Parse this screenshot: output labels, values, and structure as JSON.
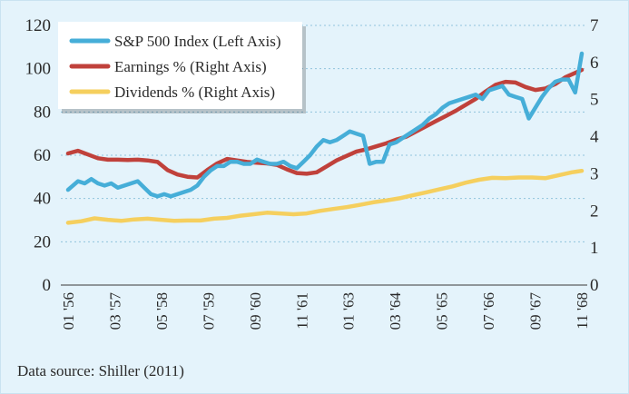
{
  "chart_data": {
    "type": "line",
    "title": "",
    "xlabel": "",
    "ylabel_left": "",
    "ylabel_right": "",
    "x_tick_labels": [
      "01 '56",
      "03 '57",
      "05 '58",
      "07 '59",
      "09 '60",
      "11 '61",
      "01 '63",
      "03 '64",
      "05 '65",
      "07 '66",
      "09 '67",
      "11 '68"
    ],
    "x_range": [
      0,
      155
    ],
    "left_axis": {
      "ylim": [
        0,
        120
      ],
      "ticks": [
        0,
        20,
        40,
        60,
        80,
        100,
        120
      ]
    },
    "right_axis": {
      "ylim": [
        0,
        7
      ],
      "ticks": [
        0,
        1,
        2,
        3,
        4,
        5,
        6,
        7
      ]
    },
    "grid": "dotted, aligned to left-axis ticks",
    "legend_position": "top-left",
    "series": [
      {
        "name": "S&P 500 Index (Left Axis)",
        "axis": "left",
        "color": "#46aed8",
        "x": [
          0,
          3,
          5,
          7,
          9,
          11,
          13,
          15,
          17,
          19,
          21,
          23,
          25,
          27,
          29,
          31,
          33,
          35,
          37,
          39,
          41,
          43,
          45,
          47,
          49,
          51,
          53,
          55,
          57,
          59,
          61,
          63,
          65,
          67,
          69,
          71,
          73,
          75,
          77,
          79,
          81,
          83,
          85,
          87,
          89,
          91,
          93,
          95,
          97,
          99,
          101,
          103,
          105,
          107,
          109,
          111,
          113,
          115,
          117,
          119,
          121,
          123,
          125,
          127,
          129,
          131,
          133,
          135,
          137,
          139,
          141,
          143,
          145,
          147,
          149,
          151,
          153,
          155
        ],
        "values": [
          44,
          48,
          47,
          49,
          47,
          46,
          47,
          45,
          46,
          47,
          48,
          45,
          42,
          41,
          42,
          41,
          42,
          43,
          44,
          46,
          50,
          53,
          55,
          55,
          57,
          57,
          56,
          56,
          58,
          57,
          56,
          56,
          57,
          55,
          54,
          57,
          60,
          64,
          67,
          66,
          67,
          69,
          71,
          70,
          69,
          56,
          57,
          57,
          65,
          66,
          68,
          70,
          72,
          74,
          77,
          79,
          82,
          84,
          85,
          86,
          87,
          88,
          86,
          90,
          91,
          92,
          88,
          87,
          86,
          77,
          82,
          87,
          91,
          94,
          95,
          95,
          89,
          107
        ]
      },
      {
        "name": "Earnings % (Right Axis)",
        "axis": "right",
        "color": "#c0413b",
        "x": [
          0,
          3,
          6,
          9,
          12,
          15,
          18,
          21,
          24,
          27,
          30,
          33,
          36,
          39,
          42,
          45,
          48,
          51,
          54,
          57,
          60,
          63,
          66,
          69,
          72,
          75,
          78,
          81,
          84,
          87,
          90,
          93,
          96,
          99,
          102,
          105,
          108,
          111,
          114,
          117,
          120,
          123,
          126,
          129,
          132,
          135,
          138,
          141,
          144,
          147,
          150,
          153,
          155
        ],
        "values": [
          3.55,
          3.62,
          3.52,
          3.42,
          3.38,
          3.38,
          3.37,
          3.38,
          3.36,
          3.32,
          3.1,
          2.98,
          2.92,
          2.9,
          3.1,
          3.28,
          3.4,
          3.36,
          3.32,
          3.3,
          3.28,
          3.24,
          3.12,
          3.02,
          3.0,
          3.04,
          3.2,
          3.36,
          3.48,
          3.6,
          3.66,
          3.74,
          3.82,
          3.92,
          4.0,
          4.14,
          4.28,
          4.42,
          4.56,
          4.7,
          4.86,
          5.02,
          5.22,
          5.4,
          5.48,
          5.46,
          5.34,
          5.26,
          5.3,
          5.42,
          5.6,
          5.72,
          5.8
        ]
      },
      {
        "name": "Dividends % (Right Axis)",
        "axis": "right",
        "color": "#f5cf5e",
        "x": [
          0,
          4,
          8,
          12,
          16,
          20,
          24,
          28,
          32,
          36,
          40,
          44,
          48,
          52,
          56,
          60,
          64,
          68,
          72,
          76,
          80,
          84,
          88,
          92,
          96,
          100,
          104,
          108,
          112,
          116,
          120,
          124,
          128,
          132,
          136,
          140,
          144,
          148,
          152,
          155
        ],
        "values": [
          1.68,
          1.72,
          1.8,
          1.76,
          1.73,
          1.77,
          1.79,
          1.76,
          1.73,
          1.74,
          1.74,
          1.79,
          1.81,
          1.87,
          1.91,
          1.95,
          1.93,
          1.91,
          1.93,
          2.0,
          2.05,
          2.1,
          2.16,
          2.23,
          2.28,
          2.34,
          2.42,
          2.5,
          2.58,
          2.66,
          2.76,
          2.84,
          2.89,
          2.88,
          2.9,
          2.9,
          2.88,
          2.96,
          3.04,
          3.08
        ]
      }
    ]
  },
  "source": "Data source: Shiller (2011)"
}
